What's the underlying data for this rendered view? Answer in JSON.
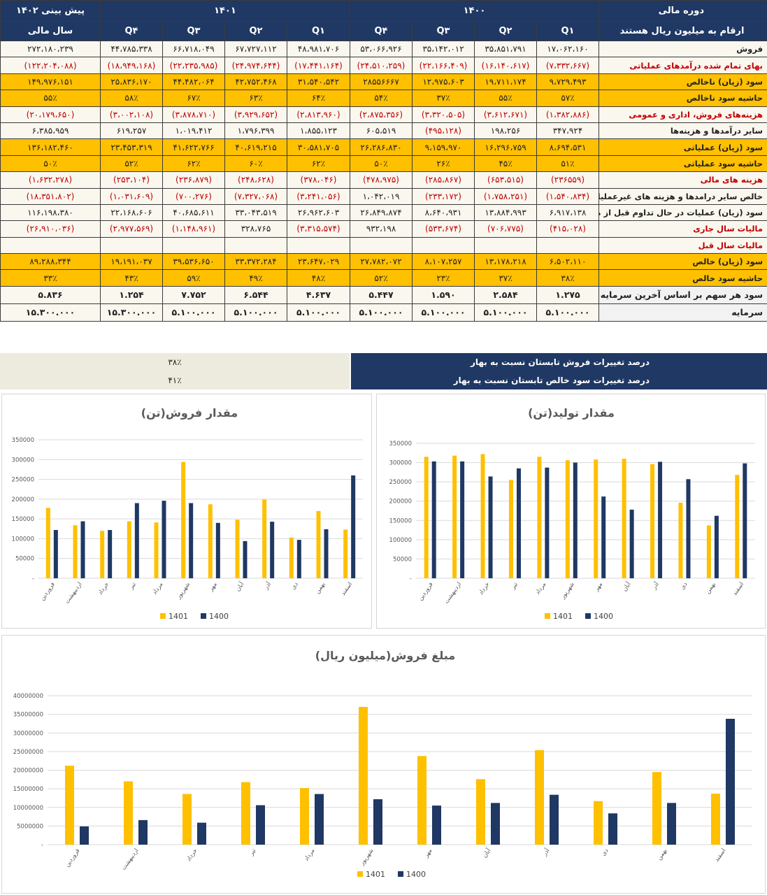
{
  "table": {
    "header_top": {
      "label_col": "دوره مالی",
      "y1400": "۱۴۰۰",
      "y1401": "۱۴۰۱",
      "forecast": "پیش بینی ۱۴۰۲"
    },
    "header_sub": {
      "label_col": "ارقام به میلیون ریال هستند",
      "q1": "Q۱",
      "q2": "Q۲",
      "q3": "Q۳",
      "q4": "Q۴",
      "fiscal_year": "سال مالی"
    },
    "rows": [
      {
        "label": "فروش",
        "style": "plain",
        "label_red": false,
        "cells": [
          [
            "۱۷،۰۶۲،۱۶۰",
            0
          ],
          [
            "۳۵،۸۵۱،۷۹۱",
            0
          ],
          [
            "۳۵،۱۴۲،۰۱۲",
            0
          ],
          [
            "۵۳،۰۶۶،۹۲۶",
            0
          ],
          [
            "۴۸،۹۸۱،۷۰۶",
            0
          ],
          [
            "۶۷،۷۲۷،۱۱۲",
            0
          ],
          [
            "۶۶،۷۱۸،۰۴۹",
            0
          ],
          [
            "۴۴،۷۸۵،۳۳۸",
            0
          ],
          [
            "۲۷۲،۱۸۰،۲۳۹",
            0
          ]
        ]
      },
      {
        "label": "بهای تمام شده درآمدهای عملیاتی",
        "style": "plain",
        "label_red": true,
        "cells": [
          [
            "(۷،۳۳۲،۶۶۷)",
            1
          ],
          [
            "(۱۶،۱۴۰،۶۱۷)",
            1
          ],
          [
            "(۲۲،۱۶۶،۴۰۹)",
            1
          ],
          [
            "(۲۴،۵۱۰،۲۵۹)",
            1
          ],
          [
            "(۱۷،۴۴۱،۱۶۴)",
            1
          ],
          [
            "(۲۴،۹۷۴،۶۴۴)",
            1
          ],
          [
            "(۲۲،۲۳۵،۹۸۵)",
            1
          ],
          [
            "(۱۸،۹۴۹،۱۶۸)",
            1
          ],
          [
            "(۱۲۲،۲۰۴،۰۸۸)",
            1
          ]
        ]
      },
      {
        "label": "سود (زیان) ناخالص",
        "style": "yel",
        "label_red": false,
        "cells": [
          [
            "۹،۷۲۹،۴۹۳",
            0
          ],
          [
            "۱۹،۷۱۱،۱۷۴",
            0
          ],
          [
            "۱۲،۹۷۵،۶۰۳",
            0
          ],
          [
            "۲۸۵۵۶۶۶۷",
            0
          ],
          [
            "۳۱،۵۴۰،۵۴۲",
            0
          ],
          [
            "۴۲،۷۵۲،۴۶۸",
            0
          ],
          [
            "۴۴،۴۸۲،۰۶۴",
            0
          ],
          [
            "۲۵،۸۳۶،۱۷۰",
            0
          ],
          [
            "۱۴۹،۹۷۶،۱۵۱",
            0
          ]
        ]
      },
      {
        "label": "حاشیه سود ناخالص",
        "style": "yel",
        "label_red": false,
        "cells": [
          [
            "۵۷٪",
            0
          ],
          [
            "۵۵٪",
            0
          ],
          [
            "۳۷٪",
            0
          ],
          [
            "۵۴٪",
            0
          ],
          [
            "۶۴٪",
            0
          ],
          [
            "۶۳٪",
            0
          ],
          [
            "۶۷٪",
            0
          ],
          [
            "۵۸٪",
            0
          ],
          [
            "۵۵٪",
            0
          ]
        ]
      },
      {
        "label": "هزینه‌های فروش، اداری و عمومی",
        "style": "plain",
        "label_red": true,
        "cells": [
          [
            "(۱،۳۸۲،۸۸۶)",
            1
          ],
          [
            "(۳،۶۱۲،۶۷۱)",
            1
          ],
          [
            "(۳،۳۲۰،۵۰۵)",
            1
          ],
          [
            "(۲،۸۷۵،۳۵۶)",
            1
          ],
          [
            "(۲،۸۱۳،۹۶۰)",
            1
          ],
          [
            "(۳،۹۲۹،۶۵۲)",
            1
          ],
          [
            "(۳،۸۷۸،۷۱۰)",
            1
          ],
          [
            "(۳،۰۰۲،۱۰۸)",
            1
          ],
          [
            "(۲۰،۱۷۹،۶۵۰)",
            1
          ]
        ]
      },
      {
        "label": "سایر درآمدها و هزینه‌ها",
        "style": "plain",
        "label_red": false,
        "cells": [
          [
            "۳۴۷،۹۲۴",
            0
          ],
          [
            "۱۹۸،۲۵۶",
            0
          ],
          [
            "(۴۹۵،۱۲۸)",
            1
          ],
          [
            "۶۰۵،۵۱۹",
            0
          ],
          [
            "۱،۸۵۵،۱۲۳",
            0
          ],
          [
            "۱،۷۹۶،۳۹۹",
            0
          ],
          [
            "۱،۰۱۹،۴۱۲",
            0
          ],
          [
            "۶۱۹،۲۵۷",
            0
          ],
          [
            "۶،۳۸۵،۹۵۹",
            0
          ]
        ]
      },
      {
        "label": "سود (زیان) عملیاتی",
        "style": "yel",
        "label_red": false,
        "cells": [
          [
            "۸،۶۹۴،۵۳۱",
            0
          ],
          [
            "۱۶،۲۹۶،۷۵۹",
            0
          ],
          [
            "۹،۱۵۹،۹۷۰",
            0
          ],
          [
            "۲۶،۲۸۶،۸۳۰",
            0
          ],
          [
            "۳۰،۵۸۱،۷۰۵",
            0
          ],
          [
            "۴۰،۶۱۹،۲۱۵",
            0
          ],
          [
            "۴۱،۶۲۲،۷۶۶",
            0
          ],
          [
            "۲۳،۴۵۳،۳۱۹",
            0
          ],
          [
            "۱۳۶،۱۸۲،۴۶۰",
            0
          ]
        ]
      },
      {
        "label": "حاشیه سود عملیاتی",
        "style": "yel",
        "label_red": false,
        "cells": [
          [
            "۵۱٪",
            0
          ],
          [
            "۴۵٪",
            0
          ],
          [
            "۲۶٪",
            0
          ],
          [
            "۵۰٪",
            0
          ],
          [
            "۶۲٪",
            0
          ],
          [
            "۶۰٪",
            0
          ],
          [
            "۶۲٪",
            0
          ],
          [
            "۵۲٪",
            0
          ],
          [
            "۵۰٪",
            0
          ]
        ]
      },
      {
        "label": "هزینه های مالی",
        "style": "plain",
        "label_red": true,
        "cells": [
          [
            "(۲۳۶۵۵۹)",
            1
          ],
          [
            "(۶۵۳،۵۱۵)",
            1
          ],
          [
            "(۲۸۵،۸۶۷)",
            1
          ],
          [
            "(۴۷۸،۹۷۵)",
            1
          ],
          [
            "(۳۷۸،۰۴۶)",
            1
          ],
          [
            "(۲۴۸،۶۲۸)",
            1
          ],
          [
            "(۲۳۶،۸۷۹)",
            1
          ],
          [
            "(۲۵۳،۱۰۴)",
            1
          ],
          [
            "(۱،۶۳۲،۲۷۸)",
            1
          ]
        ]
      },
      {
        "label": "خالص سایر درامدها و هزینه های غیرعملیاتی",
        "style": "plain",
        "label_red": false,
        "cells": [
          [
            "(۱،۵۴۰،۸۳۴)",
            1
          ],
          [
            "(۱،۷۵۸،۲۵۱)",
            1
          ],
          [
            "(۲۳۳،۱۷۲)",
            1
          ],
          [
            "۱،۰۴۲،۰۱۹",
            0
          ],
          [
            "(۳،۲۴۱،۰۵۶)",
            1
          ],
          [
            "(۷،۳۲۷،۰۶۸)",
            1
          ],
          [
            "(۷۰۰،۲۷۶)",
            1
          ],
          [
            "(۱،۰۳۱،۶۰۹)",
            1
          ],
          [
            "(۱۸،۳۵۱،۸۰۲)",
            1
          ]
        ]
      },
      {
        "label": "سود (زیان) عملیات در حال تداوم قبل از مالیات",
        "style": "plain",
        "label_red": false,
        "cells": [
          [
            "۶،۹۱۷،۱۳۸",
            0
          ],
          [
            "۱۳،۸۸۴،۹۹۳",
            0
          ],
          [
            "۸،۶۴۰،۹۳۱",
            0
          ],
          [
            "۲۶،۸۴۹،۸۷۴",
            0
          ],
          [
            "۲۶،۹۶۲،۶۰۳",
            0
          ],
          [
            "۳۳،۰۴۳،۵۱۹",
            0
          ],
          [
            "۴۰،۶۸۵،۶۱۱",
            0
          ],
          [
            "۲۲،۱۶۸،۶۰۶",
            0
          ],
          [
            "۱۱۶،۱۹۸،۳۸۰",
            0
          ]
        ]
      },
      {
        "label": "مالیات سال جاری",
        "style": "plain",
        "label_red": true,
        "cells": [
          [
            "(۴۱۵،۰۲۸)",
            1
          ],
          [
            "(۷۰۶،۷۷۵)",
            1
          ],
          [
            "(۵۳۳،۶۷۴)",
            1
          ],
          [
            "۹۳۲،۱۹۸",
            0
          ],
          [
            "(۳،۳۱۵،۵۷۴)",
            1
          ],
          [
            "۳۲۸،۷۶۵",
            0
          ],
          [
            "(۱،۱۴۸،۹۶۱)",
            1
          ],
          [
            "(۲،۹۷۷،۵۶۹)",
            1
          ],
          [
            "(۲۶،۹۱۰،۰۳۶)",
            1
          ]
        ]
      },
      {
        "label": "مالیات سال قبل",
        "style": "plain",
        "label_red": true,
        "cells": [
          [
            "",
            0
          ],
          [
            "",
            0
          ],
          [
            "",
            0
          ],
          [
            "",
            0
          ],
          [
            "",
            0
          ],
          [
            "",
            0
          ],
          [
            "",
            0
          ],
          [
            "",
            0
          ],
          [
            "",
            0
          ]
        ]
      },
      {
        "label": "سود (زیان) خالص",
        "style": "yel",
        "label_red": false,
        "cells": [
          [
            "۶،۵۰۲،۱۱۰",
            0
          ],
          [
            "۱۳،۱۷۸،۲۱۸",
            0
          ],
          [
            "۸،۱۰۷،۲۵۷",
            0
          ],
          [
            "۲۷،۷۸۲،۰۷۲",
            0
          ],
          [
            "۲۳،۶۴۷،۰۲۹",
            0
          ],
          [
            "۳۳،۳۷۲،۲۸۴",
            0
          ],
          [
            "۳۹،۵۳۶،۶۵۰",
            0
          ],
          [
            "۱۹،۱۹۱،۰۳۷",
            0
          ],
          [
            "۸۹،۲۸۸،۳۴۴",
            0
          ]
        ]
      },
      {
        "label": "حاشیه سود خالص",
        "style": "yel",
        "label_red": false,
        "cells": [
          [
            "۳۸٪",
            0
          ],
          [
            "۳۷٪",
            0
          ],
          [
            "۲۳٪",
            0
          ],
          [
            "۵۲٪",
            0
          ],
          [
            "۴۸٪",
            0
          ],
          [
            "۴۹٪",
            0
          ],
          [
            "۵۹٪",
            0
          ],
          [
            "۴۳٪",
            0
          ],
          [
            "۳۳٪",
            0
          ]
        ]
      },
      {
        "label": "سود هر سهم بر اساس آخرین سرمایه",
        "style": "big",
        "label_red": false,
        "cells": [
          [
            "۱.۲۷۵",
            0
          ],
          [
            "۲.۵۸۴",
            0
          ],
          [
            "۱.۵۹۰",
            0
          ],
          [
            "۵.۴۴۷",
            0
          ],
          [
            "۴.۶۳۷",
            0
          ],
          [
            "۶.۵۴۴",
            0
          ],
          [
            "۷.۷۵۲",
            0
          ],
          [
            "۱.۲۵۴",
            0
          ],
          [
            "۵.۸۳۶",
            0
          ]
        ]
      },
      {
        "label": "سرمایه",
        "style": "big",
        "label_red": false,
        "cells": [
          [
            "۵.۱۰۰.۰۰۰",
            0
          ],
          [
            "۵.۱۰۰.۰۰۰",
            0
          ],
          [
            "۵.۱۰۰.۰۰۰",
            0
          ],
          [
            "۵.۱۰۰.۰۰۰",
            0
          ],
          [
            "۵.۱۰۰.۰۰۰",
            0
          ],
          [
            "۵.۱۰۰.۰۰۰",
            0
          ],
          [
            "۵.۱۰۰.۰۰۰",
            0
          ],
          [
            "۱۵.۳۰۰.۰۰۰",
            0
          ],
          [
            "۱۵.۳۰۰.۰۰۰",
            0
          ]
        ]
      }
    ]
  },
  "changes": [
    {
      "label": "درصد تغییرات فروش تابستان نسبت به بهار",
      "value": "۳۸٪"
    },
    {
      "label": "درصد تغییرات سود خالص تابستان نسبت به بهار",
      "value": "۴۱٪"
    }
  ],
  "colors": {
    "navy": "#1f3864",
    "gold": "#ffc000",
    "bar1401": "#ffc000",
    "bar1400": "#1f3864",
    "red": "#c00000"
  },
  "chart_data": [
    {
      "id": "sales-qty",
      "type": "bar",
      "title": "مقدار فروش(تن)",
      "categories": [
        "فروردین",
        "اردیبهشت",
        "خرداد",
        "تیر",
        "مرداد",
        "شهریور",
        "مهر",
        "آبان",
        "آذر",
        "دی",
        "بهمن",
        "اسفند"
      ],
      "series": [
        {
          "name": "1401",
          "values": [
            178000,
            134000,
            120000,
            144000,
            141000,
            294000,
            187000,
            148000,
            199000,
            103000,
            170000,
            123000
          ]
        },
        {
          "name": "1400",
          "values": [
            122000,
            144000,
            122000,
            190000,
            196000,
            190000,
            140000,
            94000,
            143000,
            97000,
            124000,
            260000
          ]
        }
      ],
      "ylim": [
        0,
        350000
      ],
      "yticks": [
        0,
        50000,
        100000,
        150000,
        200000,
        250000,
        300000,
        350000
      ],
      "ytick_labels": [
        "-",
        "50000",
        "100000",
        "150000",
        "200000",
        "250000",
        "300000",
        "350000"
      ],
      "legend": "bottom"
    },
    {
      "id": "production-qty",
      "type": "bar",
      "title": "مقدار تولید(تن)",
      "categories": [
        "فروردین",
        "اردیبهشت",
        "خرداد",
        "تیر",
        "مرداد",
        "شهریور",
        "مهر",
        "آبان",
        "آذر",
        "دی",
        "بهمن",
        "اسفند"
      ],
      "series": [
        {
          "name": "1401",
          "values": [
            315000,
            318000,
            322000,
            255000,
            315000,
            306000,
            308000,
            310000,
            296000,
            196000,
            137000,
            268000
          ]
        },
        {
          "name": "1400",
          "values": [
            303000,
            303000,
            264000,
            285000,
            287000,
            300000,
            212000,
            178000,
            302000,
            257000,
            162000,
            298000
          ]
        }
      ],
      "ylim": [
        0,
        350000
      ],
      "yticks": [
        0,
        50000,
        100000,
        150000,
        200000,
        250000,
        300000,
        350000
      ],
      "ytick_labels": [
        "-",
        "50000",
        "100000",
        "150000",
        "200000",
        "250000",
        "300000",
        "350000"
      ],
      "legend": "bottom"
    },
    {
      "id": "sales-amount",
      "type": "bar",
      "title": "مبلغ فروش(میلیون ریال)",
      "categories": [
        "فروردین",
        "اردیبهشت",
        "خرداد",
        "تیر",
        "مرداد",
        "شهریور",
        "مهر",
        "آبان",
        "آذر",
        "دی",
        "بهمن",
        "اسفند"
      ],
      "series": [
        {
          "name": "1401",
          "values": [
            21200000,
            17000000,
            13600000,
            16800000,
            15200000,
            37000000,
            23800000,
            17600000,
            25400000,
            11700000,
            19500000,
            13700000
          ]
        },
        {
          "name": "1400",
          "values": [
            4900000,
            6600000,
            5900000,
            10600000,
            13600000,
            12200000,
            10500000,
            11200000,
            13400000,
            8400000,
            11200000,
            33800000
          ]
        }
      ],
      "ylim": [
        0,
        40000000
      ],
      "yticks": [
        0,
        5000000,
        10000000,
        15000000,
        20000000,
        25000000,
        30000000,
        35000000,
        40000000
      ],
      "ytick_labels": [
        "-",
        "5000000",
        "10000000",
        "15000000",
        "20000000",
        "25000000",
        "30000000",
        "35000000",
        "40000000"
      ],
      "legend": "bottom"
    }
  ]
}
